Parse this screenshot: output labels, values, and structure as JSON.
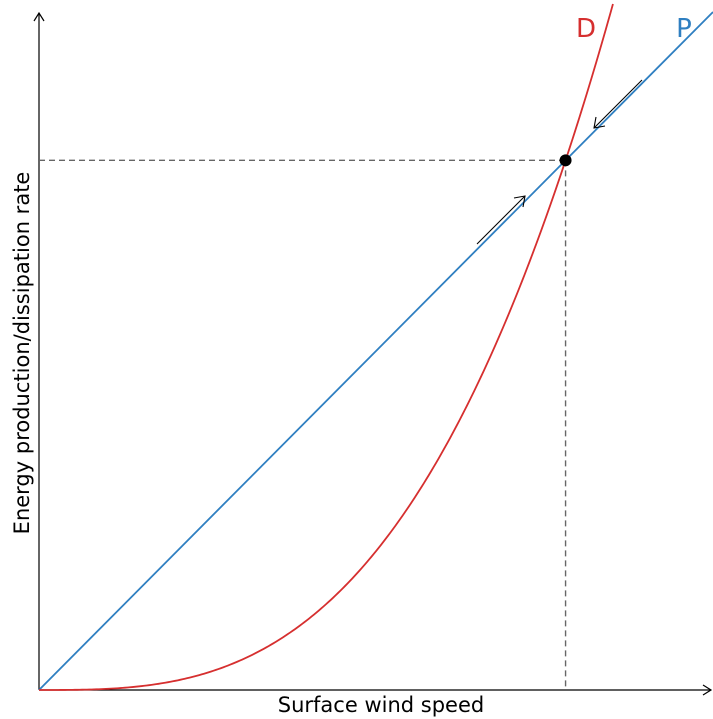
{
  "chart_data": {
    "type": "line",
    "xlabel": "Surface wind speed",
    "ylabel": "Energy production/dissipation rate",
    "colors": {
      "production": "#2f7fc1",
      "dissipation": "#d62f2f",
      "equilibrium": "#000000"
    },
    "series": [
      {
        "name": "D",
        "form": "cubic",
        "x": [
          0,
          0.1,
          0.2,
          0.3,
          0.4,
          0.5,
          0.6,
          0.7,
          0.8,
          0.9,
          1.0,
          1.1
        ],
        "y": [
          0,
          0.001,
          0.008,
          0.027,
          0.064,
          0.125,
          0.216,
          0.343,
          0.512,
          0.729,
          1.0,
          1.331
        ]
      },
      {
        "name": "P",
        "form": "linear",
        "x": [
          0,
          1.28
        ],
        "y": [
          0,
          1.28
        ]
      }
    ],
    "equilibrium_point": {
      "x": 1.0,
      "y": 1.0
    },
    "annotations": [
      {
        "type": "arrow",
        "meaning": "approach equilibrium from below along P"
      },
      {
        "type": "arrow",
        "meaning": "approach equilibrium from above along P"
      }
    ],
    "xlim": [
      0,
      1.28
    ],
    "ylim": [
      0,
      1.28
    ],
    "grid": false,
    "ticks": false
  }
}
